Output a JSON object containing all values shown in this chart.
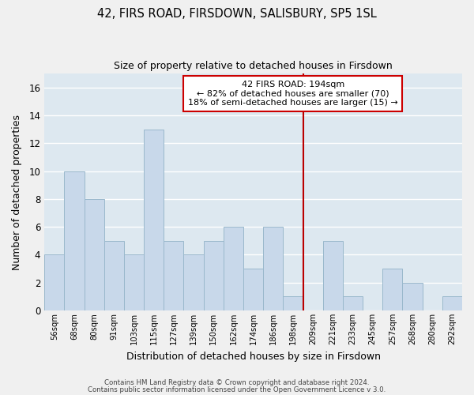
{
  "title": "42, FIRS ROAD, FIRSDOWN, SALISBURY, SP5 1SL",
  "subtitle": "Size of property relative to detached houses in Firsdown",
  "xlabel": "Distribution of detached houses by size in Firsdown",
  "ylabel": "Number of detached properties",
  "bar_labels": [
    "56sqm",
    "68sqm",
    "80sqm",
    "91sqm",
    "103sqm",
    "115sqm",
    "127sqm",
    "139sqm",
    "150sqm",
    "162sqm",
    "174sqm",
    "186sqm",
    "198sqm",
    "209sqm",
    "221sqm",
    "233sqm",
    "245sqm",
    "257sqm",
    "268sqm",
    "280sqm",
    "292sqm"
  ],
  "bar_values": [
    4,
    10,
    8,
    5,
    4,
    13,
    5,
    4,
    5,
    6,
    3,
    6,
    1,
    0,
    5,
    1,
    0,
    3,
    2,
    0,
    1
  ],
  "bar_color": "#c8d8ea",
  "bar_edge_color": "#9ab8cc",
  "ylim": [
    0,
    17
  ],
  "yticks": [
    0,
    2,
    4,
    6,
    8,
    10,
    12,
    14,
    16
  ],
  "vline_color": "#bb0000",
  "annotation_title": "42 FIRS ROAD: 194sqm",
  "annotation_line1": "← 82% of detached houses are smaller (70)",
  "annotation_line2": "18% of semi-detached houses are larger (15) →",
  "annotation_box_color": "#ffffff",
  "annotation_box_edge": "#cc0000",
  "footer1": "Contains HM Land Registry data © Crown copyright and database right 2024.",
  "footer2": "Contains public sector information licensed under the Open Government Licence v 3.0.",
  "plot_bg_color": "#dde8f0",
  "fig_bg_color": "#f0f0f0",
  "grid_color": "#ffffff"
}
